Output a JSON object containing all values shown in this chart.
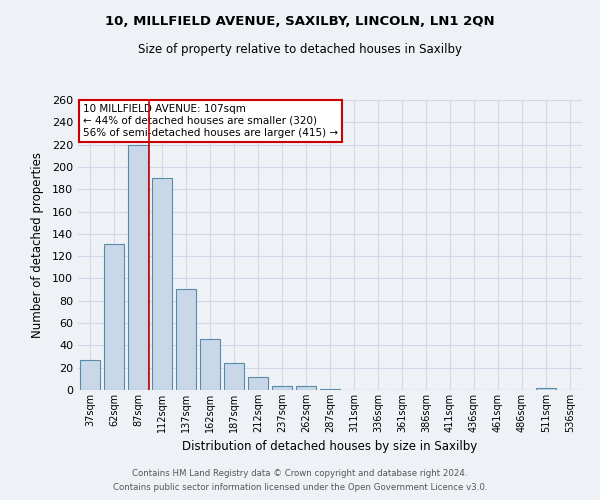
{
  "title_line1": "10, MILLFIELD AVENUE, SAXILBY, LINCOLN, LN1 2QN",
  "title_line2": "Size of property relative to detached houses in Saxilby",
  "xlabel": "Distribution of detached houses by size in Saxilby",
  "ylabel": "Number of detached properties",
  "bar_labels": [
    "37sqm",
    "62sqm",
    "87sqm",
    "112sqm",
    "137sqm",
    "162sqm",
    "187sqm",
    "212sqm",
    "237sqm",
    "262sqm",
    "287sqm",
    "311sqm",
    "336sqm",
    "361sqm",
    "386sqm",
    "411sqm",
    "436sqm",
    "461sqm",
    "486sqm",
    "511sqm",
    "536sqm"
  ],
  "bar_values": [
    27,
    131,
    220,
    190,
    91,
    46,
    24,
    12,
    4,
    4,
    1,
    0,
    0,
    0,
    0,
    0,
    0,
    0,
    0,
    2,
    0
  ],
  "bar_color": "#c8d8e8",
  "bar_edge_color": "#5a8aaa",
  "grid_color": "#d0d8e8",
  "background_color": "#eef2f7",
  "annotation_title": "10 MILLFIELD AVENUE: 107sqm",
  "annotation_line1": "← 44% of detached houses are smaller (320)",
  "annotation_line2": "56% of semi-detached houses are larger (415) →",
  "annotation_box_color": "#ffffff",
  "annotation_box_edge": "#cc0000",
  "red_line_x": 2.47,
  "ylim": [
    0,
    260
  ],
  "yticks": [
    0,
    20,
    40,
    60,
    80,
    100,
    120,
    140,
    160,
    180,
    200,
    220,
    240,
    260
  ],
  "footer_line1": "Contains HM Land Registry data © Crown copyright and database right 2024.",
  "footer_line2": "Contains public sector information licensed under the Open Government Licence v3.0."
}
